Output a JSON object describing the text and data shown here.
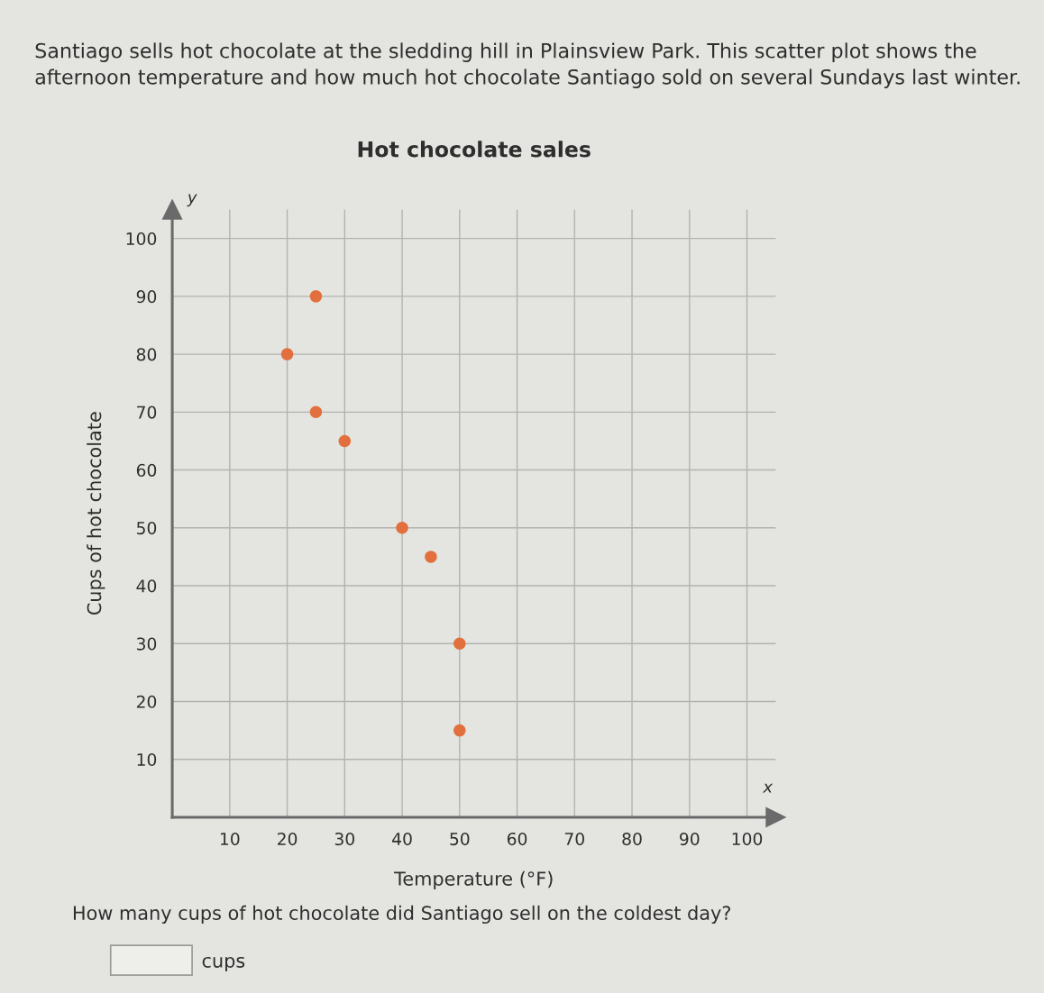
{
  "chart_data": {
    "type": "scatter",
    "title": "Hot chocolate sales",
    "xlabel": "Temperature (°F)",
    "ylabel": "Cups of hot chocolate",
    "x": [
      25,
      20,
      25,
      30,
      40,
      45,
      50,
      50
    ],
    "series": [
      {
        "color": "#e2703e",
        "values": [
          90,
          80,
          70,
          65,
          50,
          45,
          30,
          15
        ]
      }
    ],
    "xlim": [
      0,
      105
    ],
    "ylim": [
      0,
      105
    ],
    "xticks": [
      10,
      20,
      30,
      40,
      50,
      60,
      70,
      80,
      90,
      100
    ],
    "yticks": [
      10,
      20,
      30,
      40,
      50,
      60,
      70,
      80,
      90,
      100
    ],
    "grid": true,
    "marker": "circle",
    "annotations": [
      "Santiago sells hot chocolate at the sledding hill in Plainsview Park. This scatter plot shows the afternoon temperature and how much hot chocolate Santiago sold on several Sundays last winter.",
      "y",
      "x",
      "How many cups of hot chocolate did Santiago sell on the coldest day?",
      "cups"
    ]
  }
}
